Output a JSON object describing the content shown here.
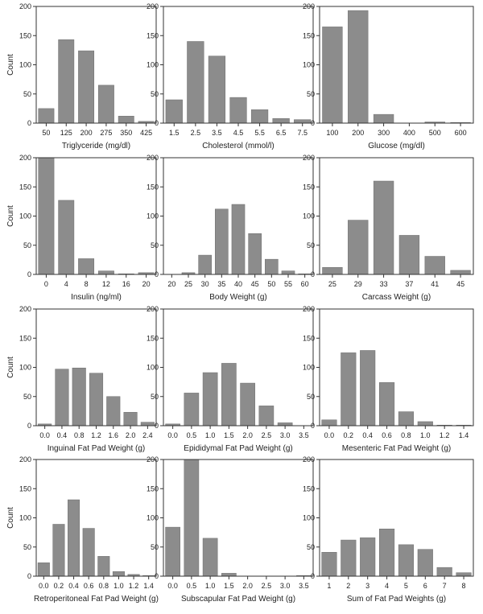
{
  "chart_data": [
    {
      "type": "bar",
      "xlabel": "Triglyceride (mg/dl)",
      "ylabel": "Count",
      "ylim": [
        0,
        200
      ],
      "yticks": [
        0,
        50,
        100,
        150,
        200
      ],
      "categories": [
        "50",
        "125",
        "200",
        "275",
        "350",
        "425"
      ],
      "values": [
        25,
        143,
        124,
        65,
        12,
        3
      ]
    },
    {
      "type": "bar",
      "xlabel": "Cholesterol (mmol/l)",
      "ylabel": "",
      "ylim": [
        0,
        200
      ],
      "yticks": [
        0,
        50,
        100,
        150,
        200
      ],
      "categories": [
        "1.5",
        "2.5",
        "3.5",
        "4.5",
        "5.5",
        "6.5",
        "7.5"
      ],
      "values": [
        40,
        140,
        115,
        44,
        23,
        8,
        6
      ]
    },
    {
      "type": "bar",
      "xlabel": "Glucose (mg/dl)",
      "ylabel": "",
      "ylim": [
        0,
        200
      ],
      "yticks": [
        0,
        50,
        100,
        150,
        200
      ],
      "categories": [
        "100",
        "200",
        "300",
        "400",
        "500",
        "600"
      ],
      "values": [
        165,
        193,
        15,
        0,
        2,
        1
      ]
    },
    {
      "type": "bar",
      "xlabel": "Insulin (ng/ml)",
      "ylabel": "Count",
      "ylim": [
        0,
        200
      ],
      "yticks": [
        0,
        50,
        100,
        150,
        200
      ],
      "categories": [
        "0",
        "4",
        "8",
        "12",
        "16",
        "20"
      ],
      "values": [
        200,
        127,
        27,
        6,
        1,
        3
      ]
    },
    {
      "type": "bar",
      "xlabel": "Body Weight (g)",
      "ylabel": "",
      "ylim": [
        0,
        200
      ],
      "yticks": [
        0,
        50,
        100,
        150,
        200
      ],
      "categories": [
        "20",
        "25",
        "30",
        "35",
        "40",
        "45",
        "50",
        "55",
        "60"
      ],
      "values": [
        0,
        3,
        33,
        112,
        120,
        70,
        26,
        6,
        1
      ]
    },
    {
      "type": "bar",
      "xlabel": "Carcass Weight (g)",
      "ylabel": "",
      "ylim": [
        0,
        200
      ],
      "yticks": [
        0,
        50,
        100,
        150,
        200
      ],
      "categories": [
        "25",
        "29",
        "33",
        "37",
        "41",
        "45"
      ],
      "values": [
        12,
        93,
        160,
        67,
        31,
        7
      ]
    },
    {
      "type": "bar",
      "xlabel": "Inguinal Fat Pad Weight (g)",
      "ylabel": "Count",
      "ylim": [
        0,
        200
      ],
      "yticks": [
        0,
        50,
        100,
        150,
        200
      ],
      "categories": [
        "0.0",
        "0.4",
        "0.8",
        "1.2",
        "1.6",
        "2.0",
        "2.4"
      ],
      "values": [
        3,
        97,
        99,
        90,
        50,
        23,
        6
      ]
    },
    {
      "type": "bar",
      "xlabel": "Epididymal Fat Pad Weight (g)",
      "ylabel": "",
      "ylim": [
        0,
        200
      ],
      "yticks": [
        0,
        50,
        100,
        150,
        200
      ],
      "categories": [
        "0.0",
        "0.5",
        "1.0",
        "1.5",
        "2.0",
        "2.5",
        "3.0",
        "3.5"
      ],
      "values": [
        3,
        56,
        91,
        107,
        73,
        34,
        5,
        0
      ]
    },
    {
      "type": "bar",
      "xlabel": "Mesenteric Fat Pad Weight (g)",
      "ylabel": "",
      "ylim": [
        0,
        200
      ],
      "yticks": [
        0,
        50,
        100,
        150,
        200
      ],
      "categories": [
        "0.0",
        "0.2",
        "0.4",
        "0.6",
        "0.8",
        "1.0",
        "1.2",
        "1.4"
      ],
      "values": [
        10,
        125,
        129,
        74,
        24,
        7,
        1,
        1
      ]
    },
    {
      "type": "bar",
      "xlabel": "Retroperitoneal Fat Pad Weight (g)",
      "ylabel": "Count",
      "ylim": [
        0,
        200
      ],
      "yticks": [
        0,
        50,
        100,
        150,
        200
      ],
      "categories": [
        "0.0",
        "0.2",
        "0.4",
        "0.6",
        "0.8",
        "1.0",
        "1.2",
        "1.4"
      ],
      "values": [
        23,
        89,
        131,
        82,
        34,
        8,
        3,
        1
      ]
    },
    {
      "type": "bar",
      "xlabel": "Subscapular Fat Pad Weight (g)",
      "ylabel": "",
      "ylim": [
        0,
        200
      ],
      "yticks": [
        0,
        50,
        100,
        150,
        200
      ],
      "categories": [
        "0.0",
        "0.5",
        "1.0",
        "1.5",
        "2.0",
        "2.5",
        "3.0",
        "3.5"
      ],
      "values": [
        84,
        200,
        65,
        5,
        0,
        0,
        0,
        1
      ]
    },
    {
      "type": "bar",
      "xlabel": "Sum of Fat Pad Weights (g)",
      "ylabel": "",
      "ylim": [
        0,
        200
      ],
      "yticks": [
        0,
        50,
        100,
        150,
        200
      ],
      "categories": [
        "1",
        "2",
        "3",
        "4",
        "5",
        "6",
        "7",
        "8"
      ],
      "values": [
        41,
        62,
        66,
        81,
        54,
        46,
        15,
        6
      ]
    }
  ]
}
